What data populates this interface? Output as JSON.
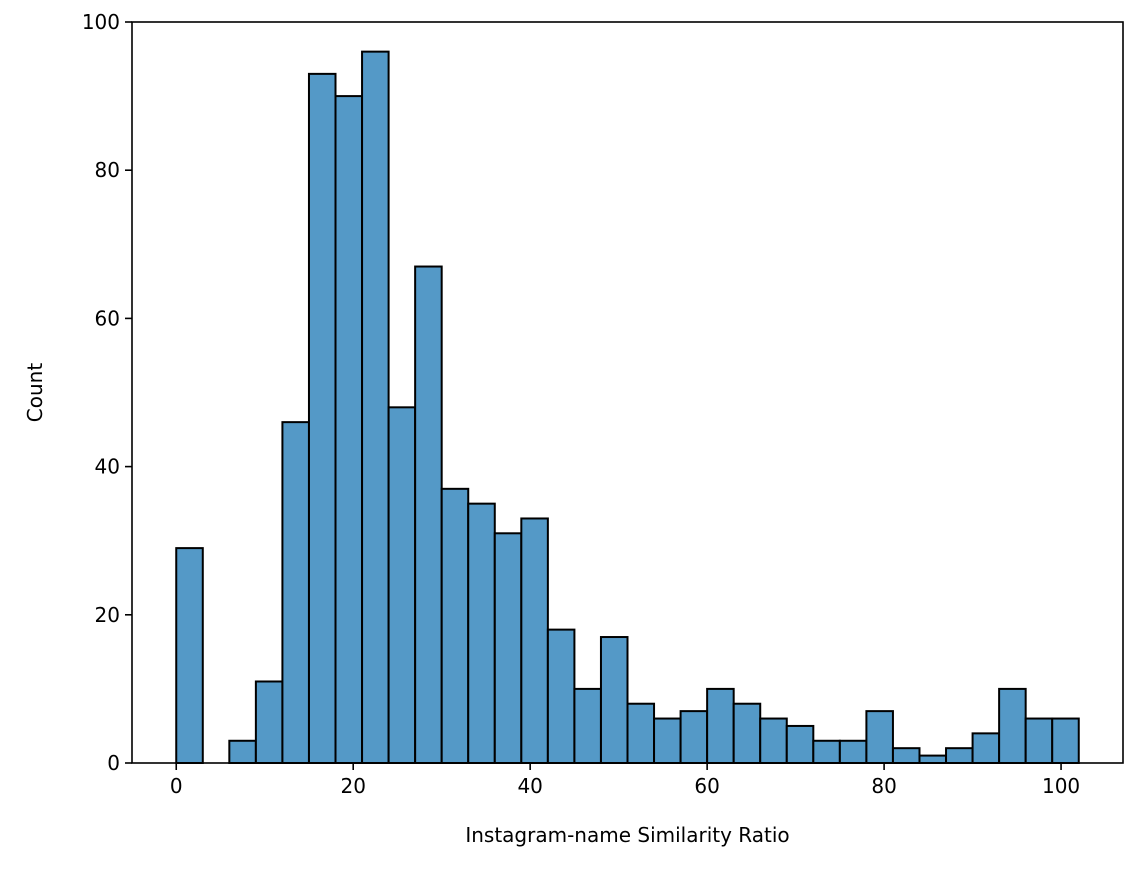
{
  "chart_data": {
    "type": "bar",
    "title": "",
    "xlabel": "Instagram-name Similarity Ratio",
    "ylabel": "Count",
    "xlim": [
      -5,
      107
    ],
    "ylim": [
      0,
      100
    ],
    "xticks": [
      0,
      20,
      40,
      60,
      80,
      100
    ],
    "yticks": [
      0,
      20,
      40,
      60,
      80,
      100
    ],
    "grid": false,
    "bar_color": "#5499c7",
    "edge_color": "#000000",
    "bin_width": 3,
    "bins": [
      {
        "start": 0,
        "end": 3,
        "count": 29
      },
      {
        "start": 3,
        "end": 6,
        "count": 0
      },
      {
        "start": 6,
        "end": 9,
        "count": 3
      },
      {
        "start": 9,
        "end": 12,
        "count": 11
      },
      {
        "start": 12,
        "end": 15,
        "count": 46
      },
      {
        "start": 15,
        "end": 18,
        "count": 93
      },
      {
        "start": 18,
        "end": 21,
        "count": 90
      },
      {
        "start": 21,
        "end": 24,
        "count": 96
      },
      {
        "start": 24,
        "end": 27,
        "count": 48
      },
      {
        "start": 27,
        "end": 30,
        "count": 67
      },
      {
        "start": 30,
        "end": 33,
        "count": 37
      },
      {
        "start": 33,
        "end": 36,
        "count": 35
      },
      {
        "start": 36,
        "end": 39,
        "count": 31
      },
      {
        "start": 39,
        "end": 42,
        "count": 33
      },
      {
        "start": 42,
        "end": 45,
        "count": 18
      },
      {
        "start": 45,
        "end": 48,
        "count": 10
      },
      {
        "start": 48,
        "end": 51,
        "count": 17
      },
      {
        "start": 51,
        "end": 54,
        "count": 8
      },
      {
        "start": 54,
        "end": 57,
        "count": 6
      },
      {
        "start": 57,
        "end": 60,
        "count": 7
      },
      {
        "start": 60,
        "end": 63,
        "count": 10
      },
      {
        "start": 63,
        "end": 66,
        "count": 8
      },
      {
        "start": 66,
        "end": 69,
        "count": 6
      },
      {
        "start": 69,
        "end": 72,
        "count": 5
      },
      {
        "start": 72,
        "end": 75,
        "count": 3
      },
      {
        "start": 75,
        "end": 78,
        "count": 3
      },
      {
        "start": 78,
        "end": 81,
        "count": 7
      },
      {
        "start": 81,
        "end": 84,
        "count": 2
      },
      {
        "start": 84,
        "end": 87,
        "count": 1
      },
      {
        "start": 87,
        "end": 90,
        "count": 2
      },
      {
        "start": 90,
        "end": 93,
        "count": 4
      },
      {
        "start": 93,
        "end": 96,
        "count": 10
      },
      {
        "start": 96,
        "end": 99,
        "count": 6
      },
      {
        "start": 99,
        "end": 102,
        "count": 6
      }
    ]
  }
}
